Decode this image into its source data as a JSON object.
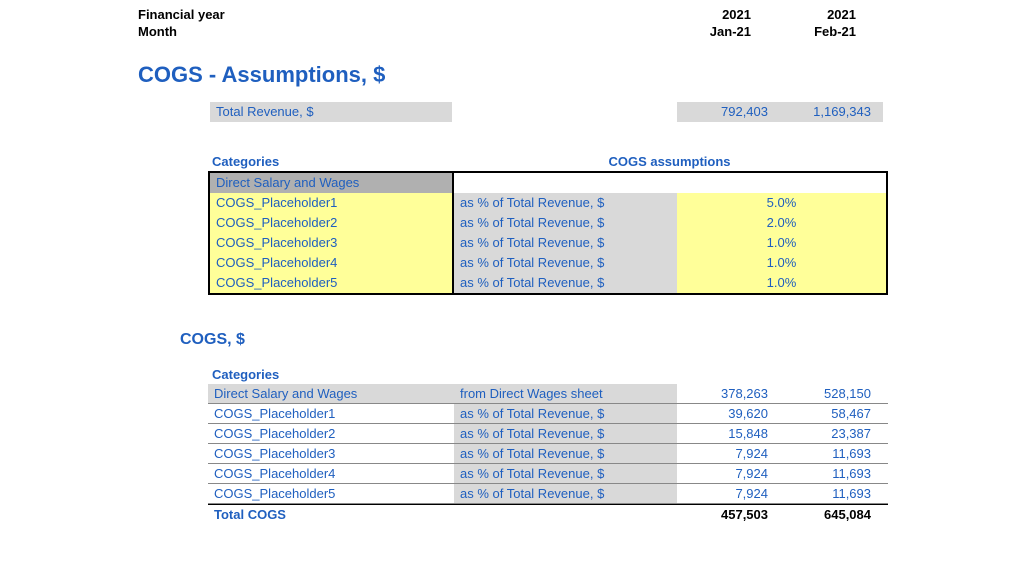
{
  "colors": {
    "blue": "#1f5fbf",
    "black": "#000000",
    "grey_header": "#b0b0b0",
    "grey_cell": "#d9d9d9",
    "yellow": "#ffff99",
    "white": "#ffffff"
  },
  "header": {
    "fy_label": "Financial year",
    "month_label": "Month",
    "years": [
      "2021",
      "2021"
    ],
    "months": [
      "Jan-21",
      "Feb-21"
    ]
  },
  "title": "COGS - Assumptions, $",
  "total_revenue": {
    "label": " Total Revenue, $",
    "values": [
      "792,403",
      "1,169,343"
    ]
  },
  "assumptions": {
    "left_heading": "Categories",
    "right_heading": "COGS assumptions",
    "header_row": "Direct Salary and Wages",
    "rows": [
      {
        "cat": "COGS_Placeholder1",
        "desc": "as % of Total Revenue, $",
        "pct": "5.0%"
      },
      {
        "cat": "COGS_Placeholder2",
        "desc": "as % of Total Revenue, $",
        "pct": "2.0%"
      },
      {
        "cat": "COGS_Placeholder3",
        "desc": "as % of Total Revenue, $",
        "pct": "1.0%"
      },
      {
        "cat": "COGS_Placeholder4",
        "desc": "as % of Total Revenue, $",
        "pct": "1.0%"
      },
      {
        "cat": "COGS_Placeholder5",
        "desc": "as % of Total Revenue, $",
        "pct": "1.0%"
      }
    ]
  },
  "cogs_section": {
    "title": "COGS, $",
    "categories_label": "Categories",
    "rows": [
      {
        "cat": "Direct Salary and Wages",
        "desc": "from Direct Wages sheet",
        "v1": "378,263",
        "v2": "528,150"
      },
      {
        "cat": "COGS_Placeholder1",
        "desc": "as % of Total Revenue, $",
        "v1": "39,620",
        "v2": "58,467"
      },
      {
        "cat": "COGS_Placeholder2",
        "desc": "as % of Total Revenue, $",
        "v1": "15,848",
        "v2": "23,387"
      },
      {
        "cat": "COGS_Placeholder3",
        "desc": "as % of Total Revenue, $",
        "v1": "7,924",
        "v2": "11,693"
      },
      {
        "cat": "COGS_Placeholder4",
        "desc": "as % of Total Revenue, $",
        "v1": "7,924",
        "v2": "11,693"
      },
      {
        "cat": "COGS_Placeholder5",
        "desc": "as % of Total Revenue, $",
        "v1": "7,924",
        "v2": "11,693"
      }
    ],
    "total_label": "Total COGS",
    "total_v1": "457,503",
    "total_v2": "645,084"
  }
}
